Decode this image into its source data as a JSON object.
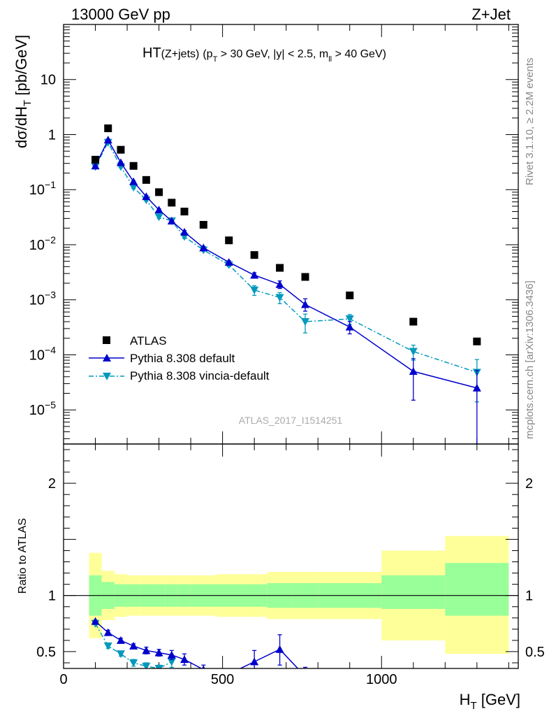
{
  "header": {
    "left": "13000 GeV pp",
    "right": "Z+Jet"
  },
  "side_labels": {
    "rivet": "Rivet 3.1.10, ≥ 2.2M events",
    "source": "mcplots.cern.ch [arXiv:1306.3436]"
  },
  "colors": {
    "atlas": "#000000",
    "pythia_default": "#0000cc",
    "pythia_vincia": "#0099bb",
    "band_inner": "#99ff99",
    "band_outer": "#ffff99"
  },
  "chart_data": [
    {
      "type": "scatter",
      "panel": "main",
      "title": {
        "main": "HT",
        "sub": "(Z+jets)",
        "cuts_a": "(p",
        "cuts_a_sub": "T",
        "cuts_b": " > 30 GeV, |y| < 2.5, m",
        "cuts_b_sub": "ll",
        "cuts_c": " > 40 GeV)"
      },
      "ylabel": {
        "a": "dσ/dH",
        "sub": "T",
        "b": " [pb/GeV]"
      },
      "watermark": "ATLAS_2017_I1514251",
      "xlim": [
        0,
        1430
      ],
      "ylim": [
        2.4e-06,
        100
      ],
      "yscale": "log",
      "yticks": [
        {
          "value": 1e-05,
          "mant": "10",
          "exp": "−5"
        },
        {
          "value": 0.0001,
          "mant": "10",
          "exp": "−4"
        },
        {
          "value": 0.001,
          "mant": "10",
          "exp": "−3"
        },
        {
          "value": 0.01,
          "mant": "10",
          "exp": "−2"
        },
        {
          "value": 0.1,
          "mant": "10",
          "exp": "−1"
        },
        {
          "value": 1,
          "mant": "1",
          "exp": ""
        },
        {
          "value": 10,
          "mant": "10",
          "exp": ""
        }
      ],
      "legend": {
        "position": "lower-left",
        "entries": [
          "ATLAS",
          "Pythia 8.308 default",
          "Pythia 8.308 vincia-default"
        ]
      },
      "series": [
        {
          "name": "ATLAS",
          "marker": "square",
          "x": [
            100,
            140,
            180,
            220,
            260,
            300,
            340,
            380,
            440,
            520,
            600,
            680,
            760,
            900,
            1100,
            1300
          ],
          "y": [
            0.35,
            1.3,
            0.53,
            0.27,
            0.15,
            0.09,
            0.058,
            0.04,
            0.023,
            0.012,
            0.0065,
            0.0038,
            0.0026,
            0.0012,
            0.0004,
            0.000175
          ]
        },
        {
          "name": "Pythia 8.308 default",
          "marker": "triangle-up",
          "x": [
            100,
            140,
            180,
            220,
            260,
            300,
            340,
            380,
            440,
            520,
            600,
            680,
            760,
            900,
            1100,
            1300
          ],
          "y": [
            0.27,
            0.8,
            0.31,
            0.14,
            0.075,
            0.043,
            0.027,
            0.017,
            0.0088,
            0.0048,
            0.0028,
            0.0019,
            0.00082,
            0.00032,
            5e-05,
            2.5e-05
          ],
          "y_low": [
            0.26,
            0.77,
            0.3,
            0.135,
            0.072,
            0.041,
            0.026,
            0.016,
            0.0084,
            0.0045,
            0.0025,
            0.0016,
            0.00062,
            0.00024,
            1.5e-05,
            2.4e-06
          ],
          "y_high": [
            0.28,
            0.83,
            0.32,
            0.145,
            0.078,
            0.045,
            0.028,
            0.018,
            0.0092,
            0.0051,
            0.0031,
            0.0022,
            0.00104,
            0.0004,
            8.5e-05,
            5.2e-05
          ]
        },
        {
          "name": "Pythia 8.308 vincia-default",
          "marker": "triangle-down",
          "x": [
            100,
            140,
            180,
            220,
            260,
            300,
            340,
            380,
            440,
            520,
            600,
            680,
            760,
            900,
            1100,
            1300
          ],
          "y": [
            0.26,
            0.72,
            0.26,
            0.11,
            0.065,
            0.032,
            0.027,
            0.014,
            0.008,
            0.0043,
            0.0015,
            0.0011,
            0.0004,
            0.00045,
            0.000115,
            4.8e-05
          ],
          "y_low": [
            0.25,
            0.69,
            0.25,
            0.105,
            0.062,
            0.03,
            0.025,
            0.013,
            0.0076,
            0.004,
            0.0012,
            0.00085,
            0.00025,
            0.00036,
            8e-05,
            1.4e-05
          ],
          "y_high": [
            0.27,
            0.75,
            0.27,
            0.115,
            0.068,
            0.034,
            0.029,
            0.015,
            0.0084,
            0.0046,
            0.0018,
            0.00135,
            0.00055,
            0.00054,
            0.00015,
            8.2e-05
          ]
        }
      ]
    },
    {
      "type": "line",
      "panel": "ratio",
      "ylabel": "Ratio to ATLAS",
      "xlabel": {
        "a": "H",
        "sub": "T",
        "b": " [GeV]"
      },
      "xlim": [
        0,
        1430
      ],
      "ylim": [
        0.35,
        2.35
      ],
      "xticks": [
        {
          "value": 0,
          "label": "0"
        },
        {
          "value": 500,
          "label": "500"
        },
        {
          "value": 1000,
          "label": "1000"
        }
      ],
      "yticks": [
        {
          "value": 0.5,
          "label": "0.5"
        },
        {
          "value": 1,
          "label": "1"
        },
        {
          "value": 2,
          "label": "2"
        }
      ],
      "reference_line": 1,
      "bands": {
        "edges": [
          80,
          120,
          160,
          200,
          240,
          280,
          320,
          360,
          400,
          480,
          560,
          640,
          720,
          800,
          1000,
          1200,
          1400
        ],
        "inner_low": [
          0.82,
          0.88,
          0.9,
          0.9,
          0.9,
          0.9,
          0.9,
          0.9,
          0.9,
          0.9,
          0.9,
          0.89,
          0.89,
          0.89,
          0.88,
          0.82
        ],
        "inner_high": [
          1.18,
          1.12,
          1.1,
          1.1,
          1.1,
          1.1,
          1.1,
          1.1,
          1.1,
          1.1,
          1.1,
          1.11,
          1.11,
          1.11,
          1.18,
          1.29
        ],
        "outer_low": [
          0.62,
          0.78,
          0.81,
          0.82,
          0.82,
          0.82,
          0.82,
          0.82,
          0.82,
          0.81,
          0.81,
          0.79,
          0.79,
          0.79,
          0.6,
          0.48
        ],
        "outer_high": [
          1.38,
          1.22,
          1.19,
          1.18,
          1.18,
          1.18,
          1.18,
          1.18,
          1.18,
          1.19,
          1.19,
          1.21,
          1.21,
          1.21,
          1.4,
          1.53
        ]
      },
      "series": [
        {
          "name": "Pythia 8.308 default",
          "marker": "triangle-up",
          "x": [
            100,
            140,
            180,
            220,
            260,
            300,
            340,
            380,
            440,
            520,
            600,
            680,
            760
          ],
          "y": [
            0.77,
            0.67,
            0.6,
            0.55,
            0.51,
            0.49,
            0.47,
            0.43,
            0.34,
            0.3,
            0.41,
            0.52,
            0.28
          ],
          "y_low": [
            0.76,
            0.65,
            0.58,
            0.53,
            0.48,
            0.46,
            0.43,
            0.38,
            0.3,
            0.27,
            0.34,
            0.38,
            0.2
          ],
          "y_high": [
            0.78,
            0.69,
            0.62,
            0.57,
            0.54,
            0.52,
            0.51,
            0.48,
            0.38,
            0.33,
            0.51,
            0.65,
            0.36
          ]
        },
        {
          "name": "Pythia 8.308 vincia-default",
          "marker": "triangle-down",
          "x": [
            100,
            140,
            180,
            220,
            260,
            300,
            340
          ],
          "y": [
            0.75,
            0.55,
            0.48,
            0.4,
            0.37,
            0.35,
            0.41
          ],
          "y_low": [
            0.74,
            0.53,
            0.46,
            0.37,
            0.34,
            0.32,
            0.36
          ],
          "y_high": [
            0.76,
            0.57,
            0.5,
            0.43,
            0.4,
            0.38,
            0.46
          ]
        }
      ]
    }
  ]
}
